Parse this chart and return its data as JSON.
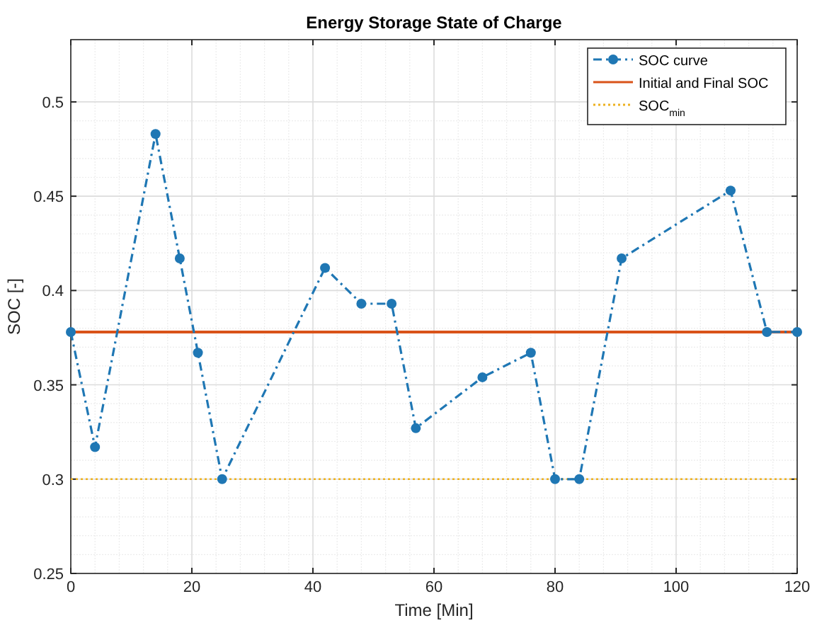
{
  "chart_data": {
    "type": "line",
    "title": "Energy Storage State of Charge",
    "xlabel": "Time [Min]",
    "ylabel": "SOC [-]",
    "xlim": [
      0,
      120
    ],
    "xticks": [
      0,
      20,
      40,
      60,
      80,
      100,
      120
    ],
    "ylim": [
      0.25,
      0.533
    ],
    "yticks": [
      0.25,
      0.3,
      0.35,
      0.4,
      0.45,
      0.5
    ],
    "series": [
      {
        "name": "SOC curve",
        "color": "#1f77b4",
        "x": [
          0,
          4,
          14,
          18,
          21,
          25,
          42,
          48,
          53,
          57,
          68,
          76,
          80,
          84,
          91,
          109,
          115,
          120
        ],
        "values": [
          0.378,
          0.317,
          0.483,
          0.417,
          0.367,
          0.3,
          0.412,
          0.393,
          0.393,
          0.327,
          0.354,
          0.367,
          0.3,
          0.3,
          0.417,
          0.453,
          0.378,
          0.378
        ]
      }
    ],
    "ref_lines": [
      {
        "axis": "y",
        "value": 0.378,
        "label": "Initial and Final SOC",
        "color": "#d95319",
        "line_style": "solid"
      },
      {
        "axis": "y",
        "value": 0.3,
        "label": "SOC$_{min}$",
        "color": "#edb120",
        "line_style": "dotted"
      }
    ],
    "grid": true,
    "legend": "top right",
    "marker": "circle",
    "line_style": "dashed"
  }
}
